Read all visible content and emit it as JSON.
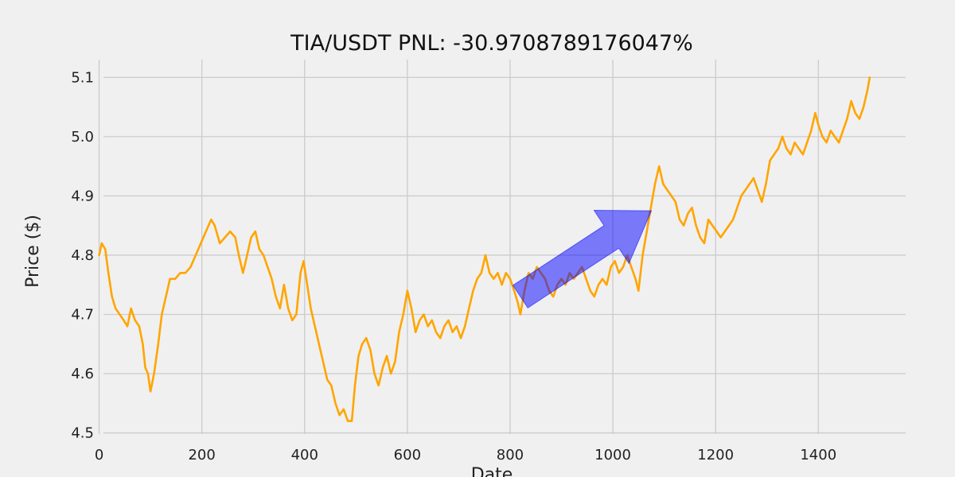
{
  "chart_data": {
    "type": "line",
    "title": "TIA/USDT  PNL: -30.9708789176047%",
    "xlabel": "Date",
    "ylabel": "Price ($)",
    "xlim": [
      -100,
      1570
    ],
    "ylim": [
      4.49,
      5.13
    ],
    "x_ticks": [
      0,
      200,
      400,
      600,
      800,
      1000,
      1200,
      1400
    ],
    "x_tick_labels": [
      "0",
      "200",
      "400",
      "600",
      "800",
      "1000",
      "1200",
      "1400"
    ],
    "y_ticks": [
      4.5,
      4.6,
      4.7,
      4.8,
      4.9,
      5.0,
      5.1
    ],
    "y_tick_labels": [
      "4.5",
      "4.6",
      "4.7",
      "4.8",
      "4.9",
      "5.0",
      "5.1"
    ],
    "grid": true,
    "colors": {
      "line": "#ffa500",
      "arrow": "#0000ff",
      "background": "#f0f0f0",
      "grid": "#cbcbcb"
    },
    "series": [
      {
        "values": [
          [
            0,
            4.8
          ],
          [
            5,
            4.82
          ],
          [
            12,
            4.81
          ],
          [
            18,
            4.77
          ],
          [
            25,
            4.73
          ],
          [
            32,
            4.71
          ],
          [
            40,
            4.7
          ],
          [
            48,
            4.69
          ],
          [
            55,
            4.68
          ],
          [
            62,
            4.71
          ],
          [
            70,
            4.69
          ],
          [
            78,
            4.68
          ],
          [
            85,
            4.65
          ],
          [
            90,
            4.61
          ],
          [
            95,
            4.6
          ],
          [
            100,
            4.57
          ],
          [
            107,
            4.6
          ],
          [
            115,
            4.65
          ],
          [
            122,
            4.7
          ],
          [
            130,
            4.73
          ],
          [
            138,
            4.76
          ],
          [
            148,
            4.76
          ],
          [
            158,
            4.77
          ],
          [
            168,
            4.77
          ],
          [
            178,
            4.78
          ],
          [
            188,
            4.8
          ],
          [
            198,
            4.82
          ],
          [
            208,
            4.84
          ],
          [
            218,
            4.86
          ],
          [
            225,
            4.85
          ],
          [
            235,
            4.82
          ],
          [
            245,
            4.83
          ],
          [
            255,
            4.84
          ],
          [
            265,
            4.83
          ],
          [
            272,
            4.8
          ],
          [
            280,
            4.77
          ],
          [
            288,
            4.8
          ],
          [
            296,
            4.83
          ],
          [
            304,
            4.84
          ],
          [
            312,
            4.81
          ],
          [
            320,
            4.8
          ],
          [
            328,
            4.78
          ],
          [
            336,
            4.76
          ],
          [
            344,
            4.73
          ],
          [
            352,
            4.71
          ],
          [
            360,
            4.75
          ],
          [
            368,
            4.71
          ],
          [
            376,
            4.69
          ],
          [
            384,
            4.7
          ],
          [
            392,
            4.77
          ],
          [
            398,
            4.79
          ],
          [
            405,
            4.75
          ],
          [
            412,
            4.71
          ],
          [
            420,
            4.68
          ],
          [
            428,
            4.65
          ],
          [
            436,
            4.62
          ],
          [
            444,
            4.59
          ],
          [
            452,
            4.58
          ],
          [
            460,
            4.55
          ],
          [
            468,
            4.53
          ],
          [
            476,
            4.54
          ],
          [
            484,
            4.52
          ],
          [
            492,
            4.52
          ],
          [
            498,
            4.58
          ],
          [
            505,
            4.63
          ],
          [
            512,
            4.65
          ],
          [
            520,
            4.66
          ],
          [
            528,
            4.64
          ],
          [
            536,
            4.6
          ],
          [
            544,
            4.58
          ],
          [
            552,
            4.61
          ],
          [
            560,
            4.63
          ],
          [
            568,
            4.6
          ],
          [
            576,
            4.62
          ],
          [
            584,
            4.67
          ],
          [
            592,
            4.7
          ],
          [
            600,
            4.74
          ],
          [
            608,
            4.71
          ],
          [
            616,
            4.67
          ],
          [
            624,
            4.69
          ],
          [
            632,
            4.7
          ],
          [
            640,
            4.68
          ],
          [
            648,
            4.69
          ],
          [
            656,
            4.67
          ],
          [
            664,
            4.66
          ],
          [
            672,
            4.68
          ],
          [
            680,
            4.69
          ],
          [
            688,
            4.67
          ],
          [
            696,
            4.68
          ],
          [
            704,
            4.66
          ],
          [
            712,
            4.68
          ],
          [
            720,
            4.71
          ],
          [
            728,
            4.74
          ],
          [
            736,
            4.76
          ],
          [
            744,
            4.77
          ],
          [
            752,
            4.8
          ],
          [
            760,
            4.77
          ],
          [
            768,
            4.76
          ],
          [
            776,
            4.77
          ],
          [
            784,
            4.75
          ],
          [
            792,
            4.77
          ],
          [
            800,
            4.76
          ],
          [
            808,
            4.74
          ],
          [
            815,
            4.72
          ],
          [
            820,
            4.7
          ],
          [
            828,
            4.74
          ],
          [
            836,
            4.77
          ],
          [
            844,
            4.76
          ],
          [
            852,
            4.78
          ],
          [
            860,
            4.77
          ],
          [
            868,
            4.76
          ],
          [
            876,
            4.74
          ],
          [
            884,
            4.73
          ],
          [
            892,
            4.75
          ],
          [
            900,
            4.76
          ],
          [
            908,
            4.75
          ],
          [
            916,
            4.77
          ],
          [
            924,
            4.76
          ],
          [
            932,
            4.77
          ],
          [
            940,
            4.78
          ],
          [
            948,
            4.76
          ],
          [
            956,
            4.74
          ],
          [
            964,
            4.73
          ],
          [
            972,
            4.75
          ],
          [
            980,
            4.76
          ],
          [
            988,
            4.75
          ],
          [
            996,
            4.78
          ],
          [
            1004,
            4.79
          ],
          [
            1012,
            4.77
          ],
          [
            1020,
            4.78
          ],
          [
            1028,
            4.8
          ],
          [
            1036,
            4.78
          ],
          [
            1044,
            4.76
          ],
          [
            1050,
            4.74
          ],
          [
            1058,
            4.8
          ],
          [
            1066,
            4.84
          ],
          [
            1074,
            4.88
          ],
          [
            1082,
            4.92
          ],
          [
            1090,
            4.95
          ],
          [
            1098,
            4.92
          ],
          [
            1106,
            4.91
          ],
          [
            1114,
            4.9
          ],
          [
            1122,
            4.89
          ],
          [
            1130,
            4.86
          ],
          [
            1138,
            4.85
          ],
          [
            1146,
            4.87
          ],
          [
            1154,
            4.88
          ],
          [
            1162,
            4.85
          ],
          [
            1170,
            4.83
          ],
          [
            1178,
            4.82
          ],
          [
            1186,
            4.86
          ],
          [
            1194,
            4.85
          ],
          [
            1202,
            4.84
          ],
          [
            1210,
            4.83
          ],
          [
            1218,
            4.84
          ],
          [
            1226,
            4.85
          ],
          [
            1234,
            4.86
          ],
          [
            1242,
            4.88
          ],
          [
            1250,
            4.9
          ],
          [
            1258,
            4.91
          ],
          [
            1266,
            4.92
          ],
          [
            1274,
            4.93
          ],
          [
            1282,
            4.91
          ],
          [
            1290,
            4.89
          ],
          [
            1298,
            4.92
          ],
          [
            1306,
            4.96
          ],
          [
            1314,
            4.97
          ],
          [
            1322,
            4.98
          ],
          [
            1330,
            5.0
          ],
          [
            1338,
            4.98
          ],
          [
            1346,
            4.97
          ],
          [
            1354,
            4.99
          ],
          [
            1362,
            4.98
          ],
          [
            1370,
            4.97
          ],
          [
            1378,
            4.99
          ],
          [
            1386,
            5.01
          ],
          [
            1394,
            5.04
          ],
          [
            1400,
            5.02
          ],
          [
            1408,
            5.0
          ],
          [
            1416,
            4.99
          ],
          [
            1424,
            5.01
          ],
          [
            1432,
            5.0
          ],
          [
            1440,
            4.99
          ],
          [
            1448,
            5.01
          ],
          [
            1456,
            5.03
          ],
          [
            1464,
            5.06
          ],
          [
            1472,
            5.04
          ],
          [
            1480,
            5.03
          ],
          [
            1488,
            5.05
          ],
          [
            1496,
            5.08
          ],
          [
            1500,
            5.1
          ]
        ]
      }
    ],
    "annotations": [
      {
        "type": "arrow",
        "x_start": 820,
        "y_start": 4.73,
        "x_end": 1075,
        "y_end": 4.875,
        "color": "#0000ff",
        "opacity": 0.5
      }
    ]
  }
}
